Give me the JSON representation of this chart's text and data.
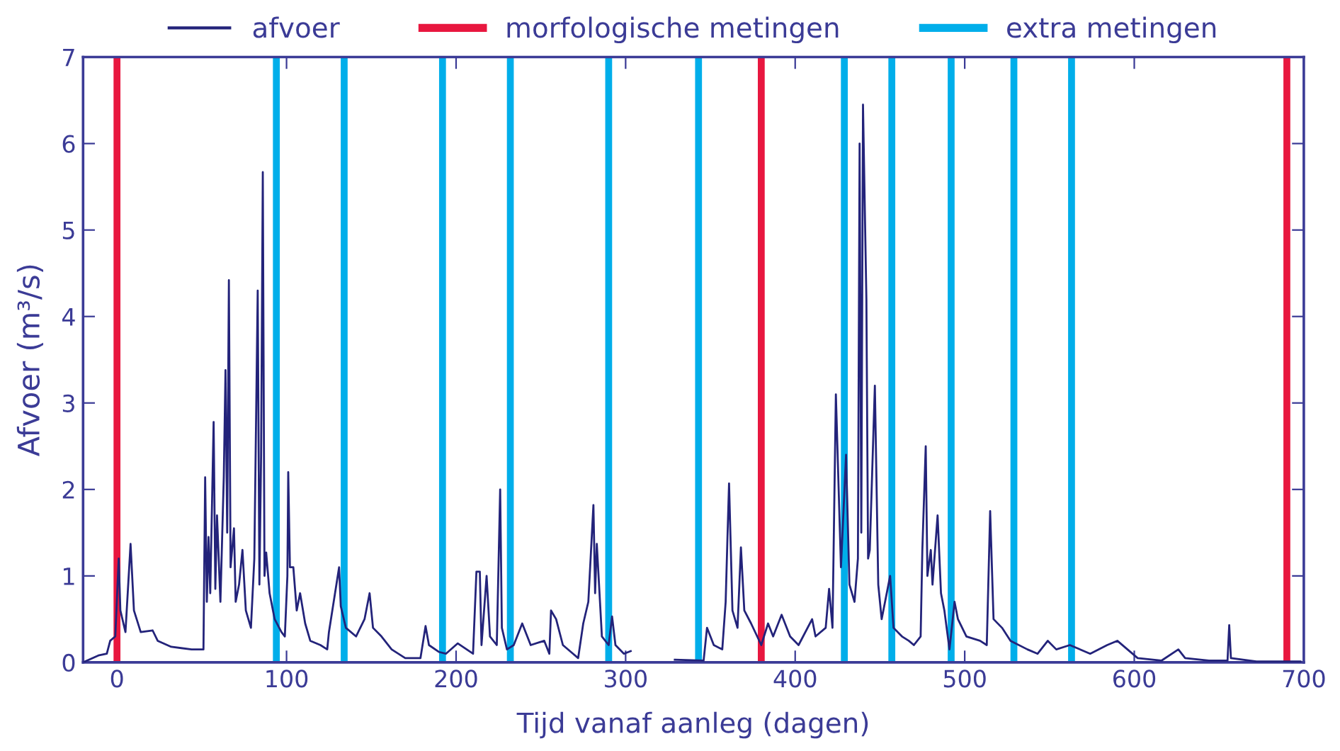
{
  "chart_data": {
    "type": "line",
    "xlabel": "Tijd vanaf aanleg (dagen)",
    "ylabel": "Afvoer (m³/s)",
    "xlim": [
      -20,
      700
    ],
    "xticks": [
      0,
      100,
      200,
      300,
      400,
      500,
      600,
      700
    ],
    "ylim": [
      0,
      7
    ],
    "yticks": [
      0,
      1,
      2,
      3,
      4,
      5,
      6,
      7
    ],
    "grid": false,
    "legend": "top",
    "marker": "none",
    "line_style": "solid",
    "series": [
      {
        "name": "afvoer",
        "color": "#23237a",
        "x": [
          -20,
          -11,
          -6,
          -4,
          -1,
          1,
          2,
          5,
          8,
          10,
          14,
          21,
          24,
          32,
          44,
          51,
          52,
          53,
          54,
          55,
          57,
          58,
          59,
          61,
          63,
          64,
          65,
          66,
          67,
          69,
          70,
          72,
          74,
          76,
          79,
          81,
          83,
          84,
          85,
          86,
          87,
          88,
          90,
          93,
          97,
          99,
          100.5,
          101,
          102,
          104,
          106,
          108,
          111,
          114,
          120,
          124,
          125,
          127,
          131,
          132,
          135,
          141,
          146,
          149,
          151,
          156,
          162,
          170,
          179,
          182,
          184,
          190,
          194,
          201,
          210,
          212,
          214,
          215,
          218,
          220,
          224,
          226,
          227,
          230,
          234,
          239,
          244,
          252,
          255,
          256,
          259,
          263,
          269,
          272,
          275,
          278,
          281,
          282,
          283,
          286,
          290,
          292,
          294,
          299,
          303,
          316,
          329,
          346,
          348,
          352,
          357,
          359,
          360,
          361,
          363,
          366,
          368,
          370,
          374,
          380,
          384,
          387,
          392,
          397,
          402,
          410,
          412,
          418,
          420,
          422,
          424,
          427,
          430,
          432,
          435,
          437,
          438,
          439,
          440,
          442,
          443,
          444,
          447,
          449,
          451,
          456,
          458,
          463,
          467,
          470,
          474,
          475,
          477,
          478,
          480,
          481,
          484,
          486,
          488,
          491,
          494,
          496,
          501,
          509,
          513,
          515,
          517,
          522,
          527,
          537,
          543,
          549,
          554,
          562,
          574,
          584,
          590,
          602,
          616,
          626,
          630,
          644,
          655,
          656,
          657,
          672,
          698
        ],
        "values": [
          0.0,
          0.08,
          0.1,
          0.25,
          0.3,
          1.2,
          0.6,
          0.35,
          1.37,
          0.6,
          0.35,
          0.37,
          0.25,
          0.18,
          0.15,
          0.15,
          2.14,
          0.7,
          1.45,
          0.8,
          2.78,
          0.85,
          1.7,
          0.7,
          2.15,
          3.38,
          1.5,
          4.42,
          1.1,
          1.55,
          0.7,
          0.9,
          1.3,
          0.6,
          0.4,
          1.2,
          4.3,
          0.9,
          2.4,
          5.67,
          1.0,
          1.27,
          0.8,
          0.5,
          0.35,
          0.3,
          1.0,
          2.2,
          1.1,
          1.1,
          0.6,
          0.8,
          0.45,
          0.25,
          0.2,
          0.15,
          0.35,
          0.6,
          1.1,
          0.65,
          0.4,
          0.3,
          0.5,
          0.8,
          0.4,
          0.3,
          0.15,
          0.05,
          0.05,
          0.42,
          0.2,
          0.12,
          0.1,
          0.22,
          0.1,
          1.05,
          1.05,
          0.2,
          1.0,
          0.3,
          0.2,
          2.0,
          0.4,
          0.15,
          0.2,
          0.45,
          0.2,
          0.25,
          0.1,
          0.6,
          0.5,
          0.2,
          0.1,
          0.05,
          0.45,
          0.7,
          1.82,
          0.8,
          1.37,
          0.3,
          0.2,
          0.53,
          0.2,
          0.1,
          0.13,
          null,
          0.03,
          0.02,
          0.4,
          0.2,
          0.15,
          0.7,
          1.4,
          2.07,
          0.6,
          0.4,
          1.33,
          0.6,
          0.45,
          0.2,
          0.45,
          0.3,
          0.55,
          0.3,
          0.2,
          0.5,
          0.3,
          0.4,
          0.85,
          0.4,
          3.1,
          1.1,
          2.4,
          0.9,
          0.7,
          1.2,
          6.0,
          1.5,
          6.45,
          4.2,
          1.2,
          1.3,
          3.2,
          0.9,
          0.5,
          1.0,
          0.4,
          0.3,
          0.25,
          0.2,
          0.3,
          1.3,
          2.5,
          1.0,
          1.3,
          0.9,
          1.7,
          0.8,
          0.6,
          0.15,
          0.7,
          0.5,
          0.3,
          0.25,
          0.2,
          1.75,
          0.5,
          0.4,
          0.25,
          0.15,
          0.1,
          0.25,
          0.15,
          0.2,
          0.1,
          0.2,
          0.25,
          0.05,
          0.02,
          0.15,
          0.05,
          0.02,
          0.02,
          0.43,
          0.05,
          0.01,
          0.01
        ]
      }
    ],
    "ref_lines": [
      {
        "axis": "x",
        "value": 0,
        "label": "morfologische metingen",
        "color": "#e8173f"
      },
      {
        "axis": "x",
        "value": 94,
        "label": "extra metingen",
        "color": "#00aeea"
      },
      {
        "axis": "x",
        "value": 134,
        "color": "#00aeea"
      },
      {
        "axis": "x",
        "value": 192,
        "color": "#00aeea"
      },
      {
        "axis": "x",
        "value": 232,
        "color": "#00aeea"
      },
      {
        "axis": "x",
        "value": 290,
        "color": "#00aeea"
      },
      {
        "axis": "x",
        "value": 343,
        "color": "#00aeea"
      },
      {
        "axis": "x",
        "value": 380,
        "color": "#e8173f"
      },
      {
        "axis": "x",
        "value": 429,
        "color": "#00aeea"
      },
      {
        "axis": "x",
        "value": 457,
        "color": "#00aeea"
      },
      {
        "axis": "x",
        "value": 492,
        "color": "#00aeea"
      },
      {
        "axis": "x",
        "value": 529,
        "color": "#00aeea"
      },
      {
        "axis": "x",
        "value": 563,
        "color": "#00aeea"
      },
      {
        "axis": "x",
        "value": 690,
        "color": "#e8173f"
      }
    ]
  }
}
